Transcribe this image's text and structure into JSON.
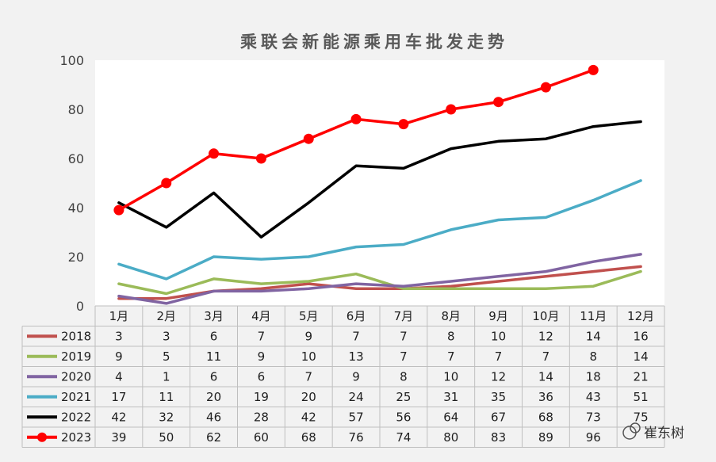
{
  "chart_data": {
    "type": "line",
    "title": "乘联会新能源乘用车批发走势",
    "categories": [
      "1月",
      "2月",
      "3月",
      "4月",
      "5月",
      "6月",
      "7月",
      "8月",
      "9月",
      "10月",
      "11月",
      "12月"
    ],
    "ylim": [
      0,
      100
    ],
    "yticks": [
      0,
      20,
      40,
      60,
      80,
      100
    ],
    "grid": false,
    "legend": "data-table-below",
    "series": [
      {
        "name": "2018",
        "color": "#c0504d",
        "markers": false,
        "values": [
          3,
          3,
          6,
          7,
          9,
          7,
          7,
          8,
          10,
          12,
          14,
          16
        ],
        "labels": [
          "3",
          "3",
          "6",
          "7",
          "9",
          "7",
          "7",
          "8",
          "10",
          "12",
          "14",
          "16"
        ]
      },
      {
        "name": "2019",
        "color": "#9bbb59",
        "markers": false,
        "values": [
          9,
          5,
          11,
          9,
          10,
          13,
          7,
          7,
          7,
          7,
          8,
          14
        ],
        "labels": [
          "9",
          "5",
          "11",
          "9",
          "10",
          "13",
          "7",
          "7",
          "7",
          "7",
          "8",
          "14"
        ]
      },
      {
        "name": "2020",
        "color": "#8064a2",
        "markers": false,
        "values": [
          4,
          1,
          6,
          6,
          7,
          9,
          8,
          10,
          12,
          14,
          18,
          21
        ],
        "labels": [
          "4",
          "1",
          "6",
          "6",
          "7",
          "9",
          "8",
          "10",
          "12",
          "14",
          "18",
          "21"
        ]
      },
      {
        "name": "2021",
        "color": "#4bacc6",
        "markers": false,
        "values": [
          17,
          11,
          20,
          19,
          20,
          24,
          25,
          31,
          35,
          36,
          43,
          51
        ],
        "labels": [
          "17",
          "11",
          "20",
          "19",
          "20",
          "24",
          "25",
          "31",
          "35",
          "36",
          "43",
          "51"
        ]
      },
      {
        "name": "2022",
        "color": "#000000",
        "markers": false,
        "values": [
          42,
          32,
          46,
          28,
          42,
          57,
          56,
          64,
          67,
          68,
          73,
          75
        ],
        "labels": [
          "42",
          "32",
          "46",
          "28",
          "42",
          "57",
          "56",
          "64",
          "67",
          "68",
          "73",
          "75"
        ]
      },
      {
        "name": "2023",
        "color": "#ff0000",
        "markers": true,
        "values": [
          39,
          50,
          62,
          60,
          68,
          76,
          74,
          80,
          83,
          89,
          96,
          null
        ],
        "labels": [
          "39",
          "50",
          "62",
          "60",
          "68",
          "76",
          "74",
          "80",
          "83",
          "89",
          "96",
          ""
        ]
      }
    ]
  },
  "watermark": {
    "text": "崔东树"
  }
}
